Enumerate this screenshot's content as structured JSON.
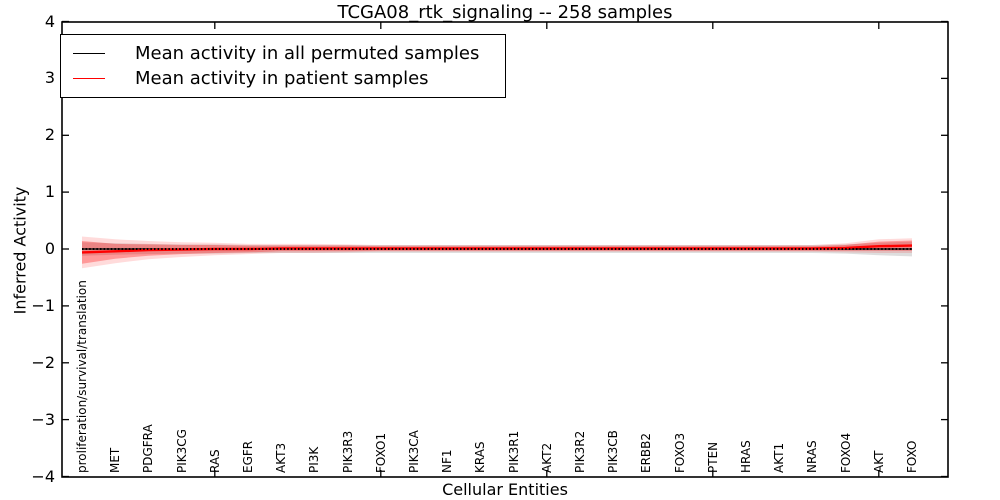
{
  "title": "TCGA08_rtk_signaling -- 258 samples",
  "axes": {
    "ylabel": "Inferred Activity",
    "xlabel": "Cellular Entities",
    "ytick_labels": [
      "4",
      "3",
      "2",
      "1",
      "0",
      "−1",
      "−2",
      "−3",
      "−4"
    ],
    "ytick_values": [
      4,
      3,
      2,
      1,
      0,
      -1,
      -2,
      -3,
      -4
    ],
    "ylim": [
      -4,
      4
    ]
  },
  "legend": {
    "items": [
      {
        "label": "Mean activity in all permuted samples",
        "color": "#000000"
      },
      {
        "label": "Mean activity in patient samples",
        "color": "#ff0000"
      }
    ]
  },
  "colors": {
    "permuted_line": "#000000",
    "patient_line": "#ff0000",
    "patient_band": "#ff0000",
    "permuted_band": "#aaaaaa",
    "frame": "#000000",
    "background": "#ffffff"
  },
  "chart_data": {
    "type": "line",
    "title": "TCGA08_rtk_signaling -- 258 samples",
    "xlabel": "Cellular Entities",
    "ylabel": "Inferred Activity",
    "ylim": [
      -4,
      4
    ],
    "grid": false,
    "legend_position": "upper left",
    "categories": [
      "proliferation/survival/translation",
      "MET",
      "PDGFRA",
      "PIK3CG",
      "RAS",
      "EGFR",
      "AKT3",
      "PI3K",
      "PIK3R3",
      "FOXO1",
      "PIK3CA",
      "NF1",
      "KRAS",
      "PIK3R1",
      "AKT2",
      "PIK3R2",
      "PIK3CB",
      "ERBB2",
      "FOXO3",
      "PTEN",
      "HRAS",
      "AKT1",
      "NRAS",
      "FOXO4",
      "AKT",
      "FOXO"
    ],
    "xtick_major_indices": [
      4,
      9,
      14,
      19,
      24
    ],
    "series": [
      {
        "name": "Mean activity in all permuted samples",
        "color": "#000000",
        "values": [
          0,
          0,
          0,
          0,
          0,
          0,
          0,
          0,
          0,
          0,
          0,
          0,
          0,
          0,
          0,
          0,
          0,
          0,
          0,
          0,
          0,
          0,
          0,
          0,
          0,
          0
        ],
        "std": [
          0.12,
          0.1,
          0.09,
          0.08,
          0.08,
          0.07,
          0.07,
          0.07,
          0.07,
          0.07,
          0.07,
          0.07,
          0.07,
          0.07,
          0.07,
          0.07,
          0.07,
          0.07,
          0.07,
          0.07,
          0.07,
          0.07,
          0.07,
          0.08,
          0.11,
          0.13
        ]
      },
      {
        "name": "Mean activity in patient samples",
        "color": "#ff0000",
        "values": [
          -0.06,
          -0.04,
          -0.02,
          -0.01,
          0.0,
          0.0,
          0.01,
          0.01,
          0.01,
          0.01,
          0.01,
          0.01,
          0.01,
          0.01,
          0.01,
          0.01,
          0.01,
          0.01,
          0.01,
          0.01,
          0.01,
          0.01,
          0.01,
          0.02,
          0.05,
          0.06
        ],
        "std": [
          0.2,
          0.13,
          0.1,
          0.08,
          0.07,
          0.06,
          0.05,
          0.05,
          0.05,
          0.04,
          0.04,
          0.04,
          0.04,
          0.04,
          0.04,
          0.04,
          0.04,
          0.04,
          0.04,
          0.04,
          0.04,
          0.04,
          0.04,
          0.05,
          0.08,
          0.09
        ],
        "std_outer": [
          0.28,
          0.21,
          0.16,
          0.13,
          0.11,
          0.09,
          0.08,
          0.08,
          0.07,
          0.06,
          0.06,
          0.06,
          0.06,
          0.06,
          0.06,
          0.06,
          0.06,
          0.06,
          0.06,
          0.06,
          0.06,
          0.06,
          0.06,
          0.08,
          0.12,
          0.13
        ]
      }
    ]
  }
}
